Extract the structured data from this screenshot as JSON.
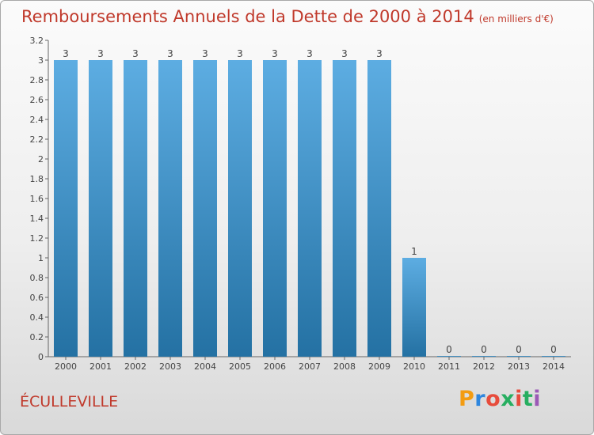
{
  "page": {
    "title": "Remboursements Annuels de la Dette de 2000 à 2014",
    "subtitle": "(en milliers d'€)",
    "commune": "ÉCULLEVILLE"
  },
  "logo": {
    "text": "Proxiti",
    "letter_colors": [
      "#f39c12",
      "#2e86de",
      "#e74c3c",
      "#27ae60",
      "#e74c3c",
      "#27ae60",
      "#9b59b6"
    ]
  },
  "colors": {
    "bar_light": "#5dade2",
    "bar_dark": "#2471a3",
    "title": "#c0392b",
    "grid": "#cccccc"
  },
  "chart_data": {
    "type": "bar",
    "title": "Remboursements Annuels de la Dette de 2000 à 2014",
    "subtitle": "(en milliers d'€)",
    "categories": [
      "2000",
      "2001",
      "2002",
      "2003",
      "2004",
      "2005",
      "2006",
      "2007",
      "2008",
      "2009",
      "2010",
      "2011",
      "2012",
      "2013",
      "2014"
    ],
    "values": [
      3,
      3,
      3,
      3,
      3,
      3,
      3,
      3,
      3,
      3,
      1,
      0,
      0,
      0,
      0
    ],
    "data_labels": [
      "3",
      "3",
      "3",
      "3",
      "3",
      "3",
      "3",
      "3",
      "3",
      "3",
      "1",
      "0",
      "0",
      "0",
      "0"
    ],
    "yticks": [
      {
        "value": 0,
        "label": "0"
      },
      {
        "value": 0.2,
        "label": "0.2"
      },
      {
        "value": 0.4,
        "label": "0.4"
      },
      {
        "value": 0.6,
        "label": "0.6"
      },
      {
        "value": 0.8,
        "label": "0.8"
      },
      {
        "value": 1,
        "label": "1"
      },
      {
        "value": 1.2,
        "label": "1.2"
      },
      {
        "value": 1.4,
        "label": "1.4"
      },
      {
        "value": 1.6,
        "label": "1.6"
      },
      {
        "value": 1.8,
        "label": "1.8"
      },
      {
        "value": 2,
        "label": "2"
      },
      {
        "value": 2.2,
        "label": "2.2"
      },
      {
        "value": 2.4,
        "label": "2.4"
      },
      {
        "value": 2.6,
        "label": "2.6"
      },
      {
        "value": 2.8,
        "label": "2.8"
      },
      {
        "value": 3,
        "label": "3"
      },
      {
        "value": 3.2,
        "label": "3.2"
      }
    ],
    "ylim": [
      0,
      3.2
    ],
    "grid": false,
    "legend": "none"
  }
}
